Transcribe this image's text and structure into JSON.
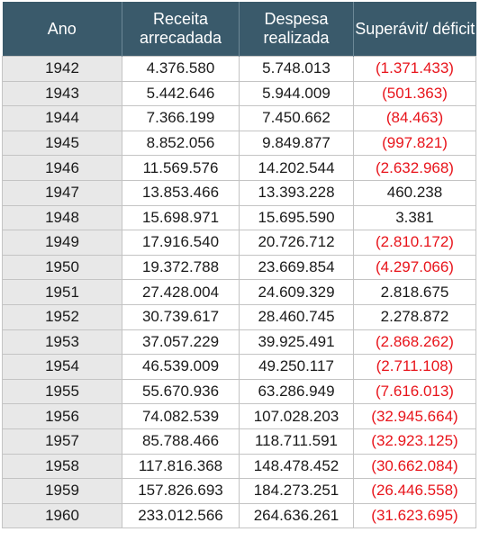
{
  "table": {
    "headers": [
      "Ano",
      "Receita arrecadada",
      "Despesa realizada",
      "Superávit/ déficit"
    ],
    "rows": [
      [
        "1942",
        "4.376.580",
        "5.748.013",
        "(1.371.433)"
      ],
      [
        "1943",
        "5.442.646",
        "5.944.009",
        "(501.363)"
      ],
      [
        "1944",
        "7.366.199",
        "7.450.662",
        "(84.463)"
      ],
      [
        "1945",
        "8.852.056",
        "9.849.877",
        "(997.821)"
      ],
      [
        "1946",
        "11.569.576",
        "14.202.544",
        "(2.632.968)"
      ],
      [
        "1947",
        "13.853.466",
        "13.393.228",
        "460.238"
      ],
      [
        "1948",
        "15.698.971",
        "15.695.590",
        "3.381"
      ],
      [
        "1949",
        "17.916.540",
        "20.726.712",
        "(2.810.172)"
      ],
      [
        "1950",
        "19.372.788",
        "23.669.854",
        "(4.297.066)"
      ],
      [
        "1951",
        "27.428.004",
        "24.609.329",
        "2.818.675"
      ],
      [
        "1952",
        "30.739.617",
        "28.460.745",
        "2.278.872"
      ],
      [
        "1953",
        "37.057.229",
        "39.925.491",
        "(2.868.262)"
      ],
      [
        "1954",
        "46.539.009",
        "49.250.117",
        "(2.711.108)"
      ],
      [
        "1955",
        "55.670.936",
        "63.286.949",
        "(7.616.013)"
      ],
      [
        "1956",
        "74.082.539",
        "107.028.203",
        "(32.945.664)"
      ],
      [
        "1957",
        "85.788.466",
        "118.711.591",
        "(32.923.125)"
      ],
      [
        "1958",
        "117.816.368",
        "148.478.452",
        "(30.662.084)"
      ],
      [
        "1959",
        "157.826.693",
        "184.273.251",
        "(26.446.558)"
      ],
      [
        "1960",
        "233.012.566",
        "264.636.261",
        "(31.623.695)"
      ]
    ]
  },
  "colors": {
    "header_bg": "#3a5a6b",
    "header_text": "#ffffff",
    "year_cell_bg": "#e8e8e8",
    "deficit_text": "#e8141b",
    "grid": "#c4c4c4"
  }
}
